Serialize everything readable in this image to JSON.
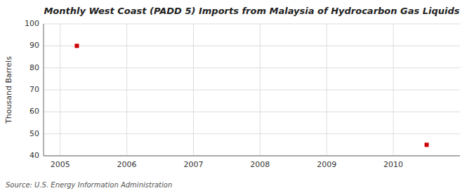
{
  "chart_data": {
    "type": "scatter",
    "title": "Monthly West Coast (PADD 5) Imports from Malaysia of Hydrocarbon Gas Liquids",
    "ylabel": "Thousand Barrels",
    "source": "Source: U.S. Energy Information Administration",
    "x": [
      2005.25,
      2010.5
    ],
    "values": [
      90,
      45
    ],
    "color": "#cc0000",
    "marker": "square",
    "xlim": [
      2004.75,
      2011.0
    ],
    "xticks": [
      2005,
      2006,
      2007,
      2008,
      2009,
      2010
    ],
    "ylim": [
      40,
      100
    ],
    "yticks": [
      40,
      50,
      60,
      70,
      80,
      90,
      100
    ],
    "grid": true
  }
}
